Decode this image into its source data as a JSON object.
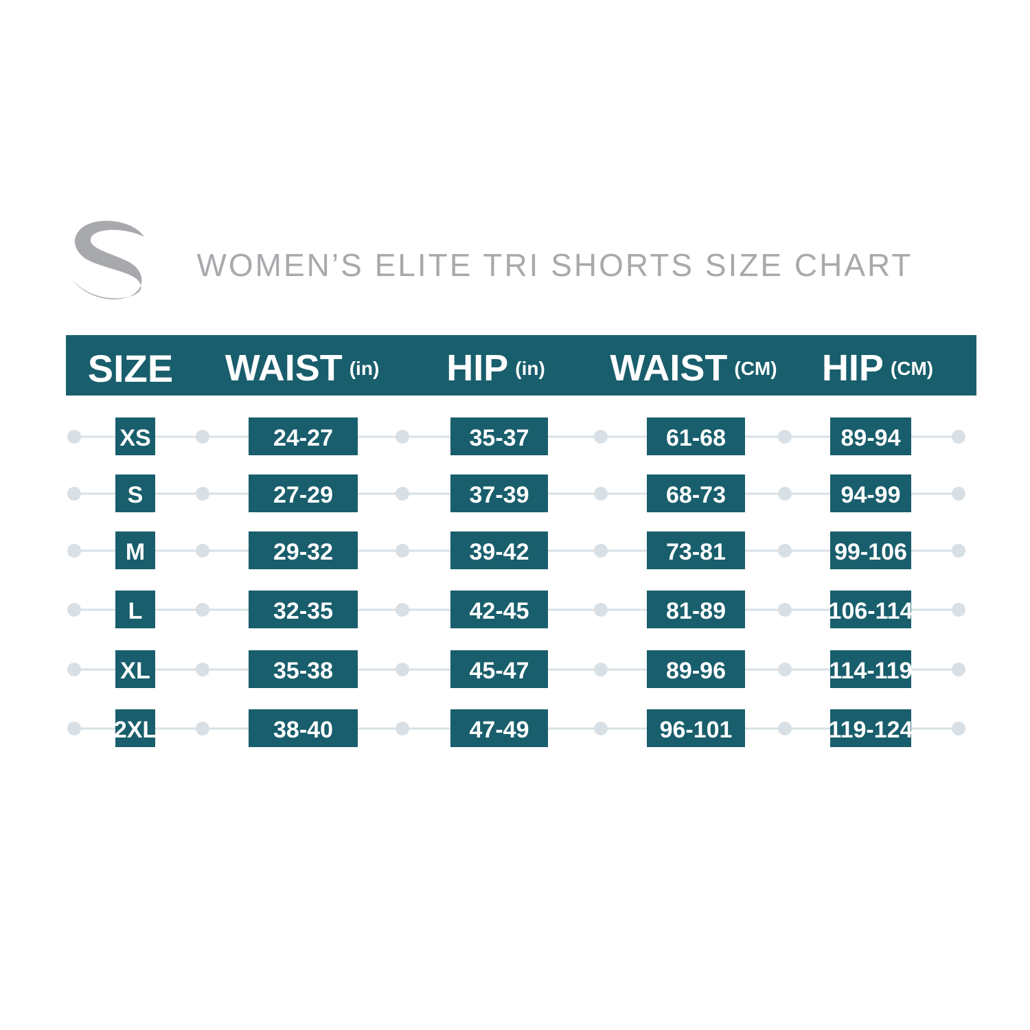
{
  "header": {
    "title": "WOMEN’S ELITE TRI SHORTS SIZE CHART"
  },
  "table": {
    "columns": [
      {
        "name": "SIZE"
      },
      {
        "name": "WAIST",
        "unit": "(in)"
      },
      {
        "name": "HIP",
        "unit": "(in)"
      },
      {
        "name": "WAIST",
        "unit": "(CM)"
      },
      {
        "name": "HIP",
        "unit": "(CM)"
      }
    ],
    "rows": [
      [
        "XS",
        "24-27",
        "35-37",
        "61-68",
        "89-94"
      ],
      [
        "S",
        "27-29",
        "37-39",
        "68-73",
        "94-99"
      ],
      [
        "M",
        "29-32",
        "39-42",
        "73-81",
        "99-106"
      ],
      [
        "L",
        "32-35",
        "42-45",
        "81-89",
        "106-114"
      ],
      [
        "XL",
        "35-38",
        "45-47",
        "89-96",
        "114-119"
      ],
      [
        "2XL",
        "38-40",
        "47-49",
        "96-101",
        "119-124"
      ]
    ]
  }
}
